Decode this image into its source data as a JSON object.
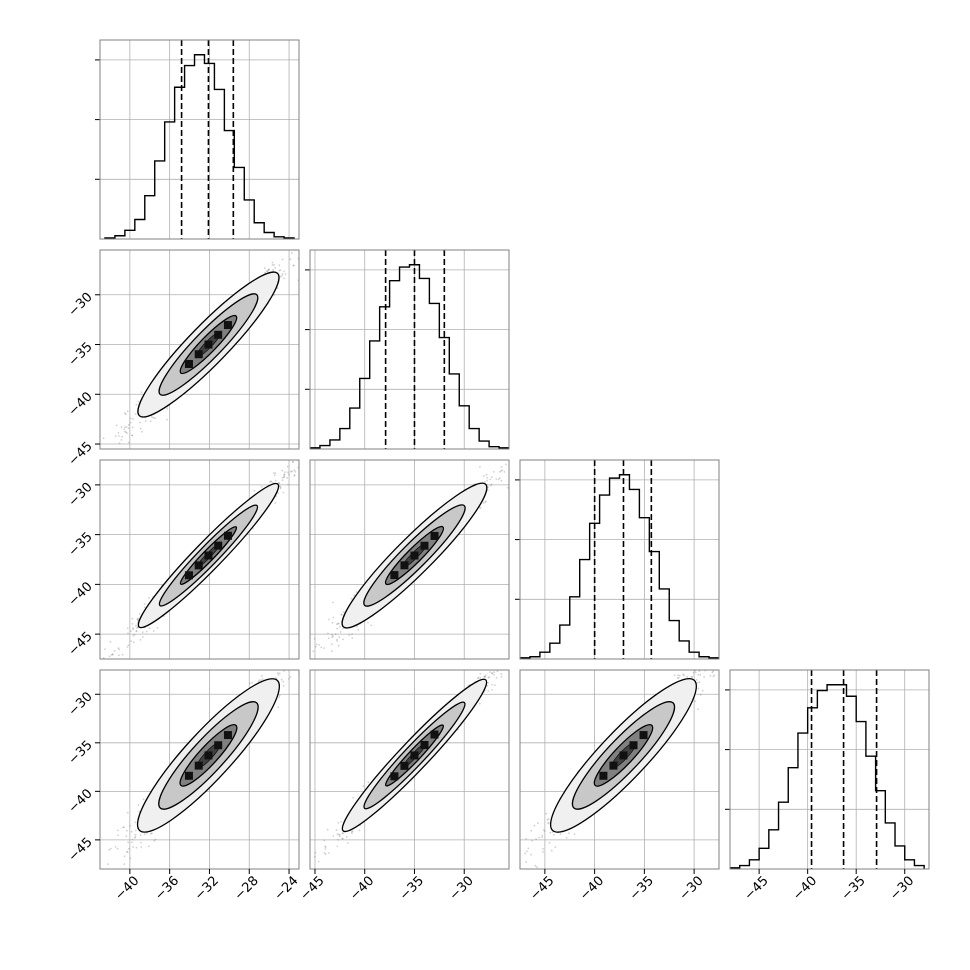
{
  "figure": {
    "type": "corner-plot"
  },
  "chart_data": {
    "type": "corner",
    "n_params": 4,
    "colors": {
      "frame": "#808080",
      "grid": "#b0b0b0",
      "line": "#000000",
      "scatter": "#7a7a7a"
    },
    "grid": true,
    "hist_style": "step",
    "quantile_style": "dashed",
    "params": [
      {
        "range": [
          -43,
          -23
        ],
        "quantiles": [
          -34.8,
          -32.1,
          -29.6
        ],
        "ticks": [
          "−40",
          "−36",
          "−32",
          "−28",
          "−24"
        ],
        "tick_values": [
          -40,
          -36,
          -32,
          -28,
          -24
        ]
      },
      {
        "range": [
          -45.5,
          -25.5
        ],
        "quantiles": [
          -37.9,
          -35.0,
          -32.0
        ],
        "ticks": [
          "−45",
          "−40",
          "−35",
          "−30"
        ],
        "tick_values": [
          -45,
          -40,
          -35,
          -30
        ]
      },
      {
        "range": [
          -47.5,
          -27.5
        ],
        "quantiles": [
          -40.0,
          -37.1,
          -34.3
        ],
        "ticks": [
          "−45",
          "−40",
          "−35",
          "−30"
        ],
        "tick_values": [
          -45,
          -40,
          -35,
          -30
        ]
      },
      {
        "range": [
          -48,
          -27.5
        ],
        "quantiles": [
          -39.6,
          -36.3,
          -32.9
        ],
        "ticks": [
          "−45",
          "−40",
          "−35",
          "−30"
        ],
        "tick_values": [
          -45,
          -40,
          -35,
          -30
        ]
      }
    ],
    "histograms": [
      {
        "bins": [
          -42,
          -41,
          -40,
          -39,
          -38,
          -37,
          -36,
          -35,
          -34,
          -33,
          -32,
          -31,
          -30,
          -29,
          -28,
          -27,
          -26,
          -25,
          -24
        ],
        "counts": [
          1,
          3,
          8,
          18,
          40,
          72,
          108,
          140,
          160,
          170,
          162,
          138,
          100,
          66,
          36,
          15,
          6,
          2,
          1
        ]
      },
      {
        "bins": [
          -45,
          -44,
          -43,
          -42,
          -41,
          -40,
          -39,
          -38,
          -37,
          -36,
          -35,
          -34,
          -33,
          -32,
          -31,
          -30,
          -29,
          -28,
          -27,
          -26
        ],
        "counts": [
          1,
          3,
          8,
          18,
          36,
          62,
          95,
          125,
          148,
          160,
          162,
          150,
          128,
          98,
          66,
          38,
          18,
          7,
          2,
          1
        ]
      },
      {
        "bins": [
          -47,
          -46,
          -45,
          -44,
          -43,
          -42,
          -41,
          -40,
          -39,
          -38,
          -37,
          -36,
          -35,
          -34,
          -33,
          -32,
          -31,
          -30,
          -29,
          -28
        ],
        "counts": [
          1,
          2,
          6,
          14,
          30,
          55,
          88,
          120,
          145,
          160,
          163,
          150,
          125,
          95,
          62,
          34,
          16,
          6,
          2,
          1
        ]
      },
      {
        "bins": [
          -47.5,
          -46.5,
          -45.5,
          -44.5,
          -43.5,
          -42.5,
          -41.5,
          -40.5,
          -39.5,
          -38.5,
          -37.5,
          -36.5,
          -35.5,
          -34.5,
          -33.5,
          -32.5,
          -31.5,
          -30.5,
          -29.5,
          -28.5
        ],
        "counts": [
          1,
          3,
          8,
          18,
          34,
          58,
          88,
          118,
          140,
          155,
          160,
          160,
          150,
          128,
          98,
          68,
          40,
          20,
          8,
          3
        ]
      }
    ],
    "correlations": [
      {
        "pair": [
          1,
          0
        ],
        "mean": [
          -32.1,
          -35.0
        ],
        "sd": [
          3.5,
          3.6
        ],
        "rho": 0.97
      },
      {
        "pair": [
          2,
          0
        ],
        "mean": [
          -32.1,
          -37.1
        ],
        "sd": [
          3.5,
          3.6
        ],
        "rho": 0.985
      },
      {
        "pair": [
          2,
          1
        ],
        "mean": [
          -35.0,
          -37.1
        ],
        "sd": [
          3.6,
          3.6
        ],
        "rho": 0.975
      },
      {
        "pair": [
          3,
          0
        ],
        "mean": [
          -32.1,
          -36.3
        ],
        "sd": [
          3.5,
          3.9
        ],
        "rho": 0.96
      },
      {
        "pair": [
          3,
          1
        ],
        "mean": [
          -35.0,
          -36.3
        ],
        "sd": [
          3.6,
          3.9
        ],
        "rho": 0.985
      },
      {
        "pair": [
          3,
          2
        ],
        "mean": [
          -37.1,
          -36.3
        ],
        "sd": [
          3.6,
          3.9
        ],
        "rho": 0.96
      }
    ]
  }
}
